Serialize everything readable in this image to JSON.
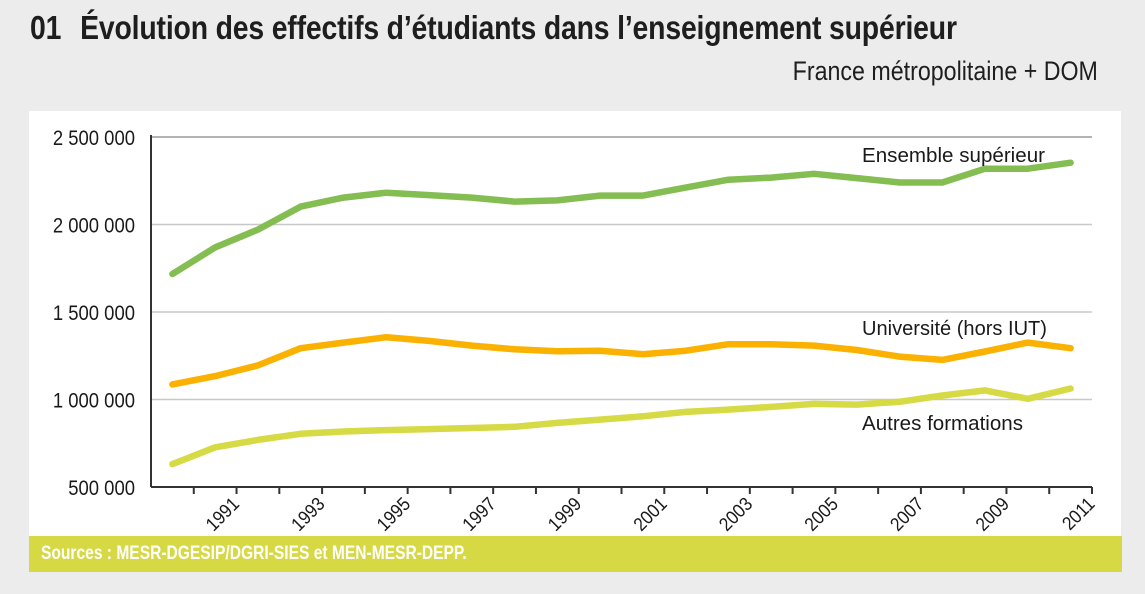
{
  "header": {
    "number": "01",
    "title": "Évolution des effectifs d’étudiants dans l’enseignement supérieur",
    "subtitle": "France métropolitaine + DOM"
  },
  "source": "Sources : MESR-DGESIP/DGRI-SIES et MEN-MESR-DEPP.",
  "colors": {
    "background": "#ececec",
    "panel": "#ffffff",
    "source_bar": "#d6d944",
    "ensemble": "#84bd52",
    "universite": "#fbb100",
    "autres": "#d6da45"
  },
  "chart_data": {
    "type": "line",
    "title": "Évolution des effectifs d’étudiants dans l’enseignement supérieur",
    "subtitle": "France métropolitaine + DOM",
    "xlabel": "",
    "ylabel": "",
    "x": [
      1990,
      1991,
      1992,
      1993,
      1994,
      1995,
      1996,
      1997,
      1998,
      1999,
      2000,
      2001,
      2002,
      2003,
      2004,
      2005,
      2006,
      2007,
      2008,
      2009,
      2010,
      2011
    ],
    "x_tick_labels": [
      "1991",
      "1993",
      "1995",
      "1997",
      "1999",
      "2001",
      "2003",
      "2005",
      "2007",
      "2009",
      "2011"
    ],
    "y_tick_labels": [
      "500 000",
      "1 000 000",
      "1 500 000",
      "2 000 000",
      "2 500 000"
    ],
    "y_ticks": [
      500000,
      1000000,
      1500000,
      2000000,
      2500000
    ],
    "ylim": [
      500000,
      2500000
    ],
    "grid": true,
    "legend": "inline labels near right end of each series",
    "series": [
      {
        "name": "Ensemble supérieur",
        "color": "#84bd52",
        "values": [
          1717000,
          1869000,
          1971000,
          2102000,
          2154000,
          2182000,
          2168000,
          2154000,
          2131000,
          2138000,
          2165000,
          2165000,
          2211000,
          2256000,
          2268000,
          2290000,
          2265000,
          2240000,
          2240000,
          2319000,
          2319000,
          2353000
        ]
      },
      {
        "name": "Université (hors IUT)",
        "color": "#fbb100",
        "values": [
          1086000,
          1134000,
          1195000,
          1293000,
          1325000,
          1356000,
          1335000,
          1308000,
          1287000,
          1276000,
          1279000,
          1259000,
          1279000,
          1316000,
          1316000,
          1308000,
          1283000,
          1245000,
          1226000,
          1274000,
          1325000,
          1293000
        ]
      },
      {
        "name": "Autres formations",
        "color": "#d6da45",
        "values": [
          631000,
          727000,
          769000,
          804000,
          817000,
          825000,
          831000,
          837000,
          844000,
          866000,
          885000,
          904000,
          929000,
          942000,
          958000,
          975000,
          971000,
          987000,
          1023000,
          1052000,
          1004000,
          1063000
        ]
      }
    ]
  }
}
